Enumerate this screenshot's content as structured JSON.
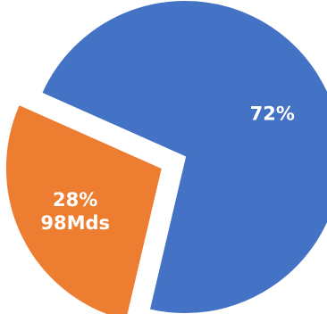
{
  "chart_data": {
    "type": "pie",
    "title": "",
    "legend": "none",
    "slices": [
      {
        "value": 72,
        "percent_label": "72%",
        "value_label": "",
        "color": "#4472C4"
      },
      {
        "value": 28,
        "percent_label": "28%",
        "value_label": "98Mds",
        "color": "#ED7D31"
      }
    ]
  }
}
